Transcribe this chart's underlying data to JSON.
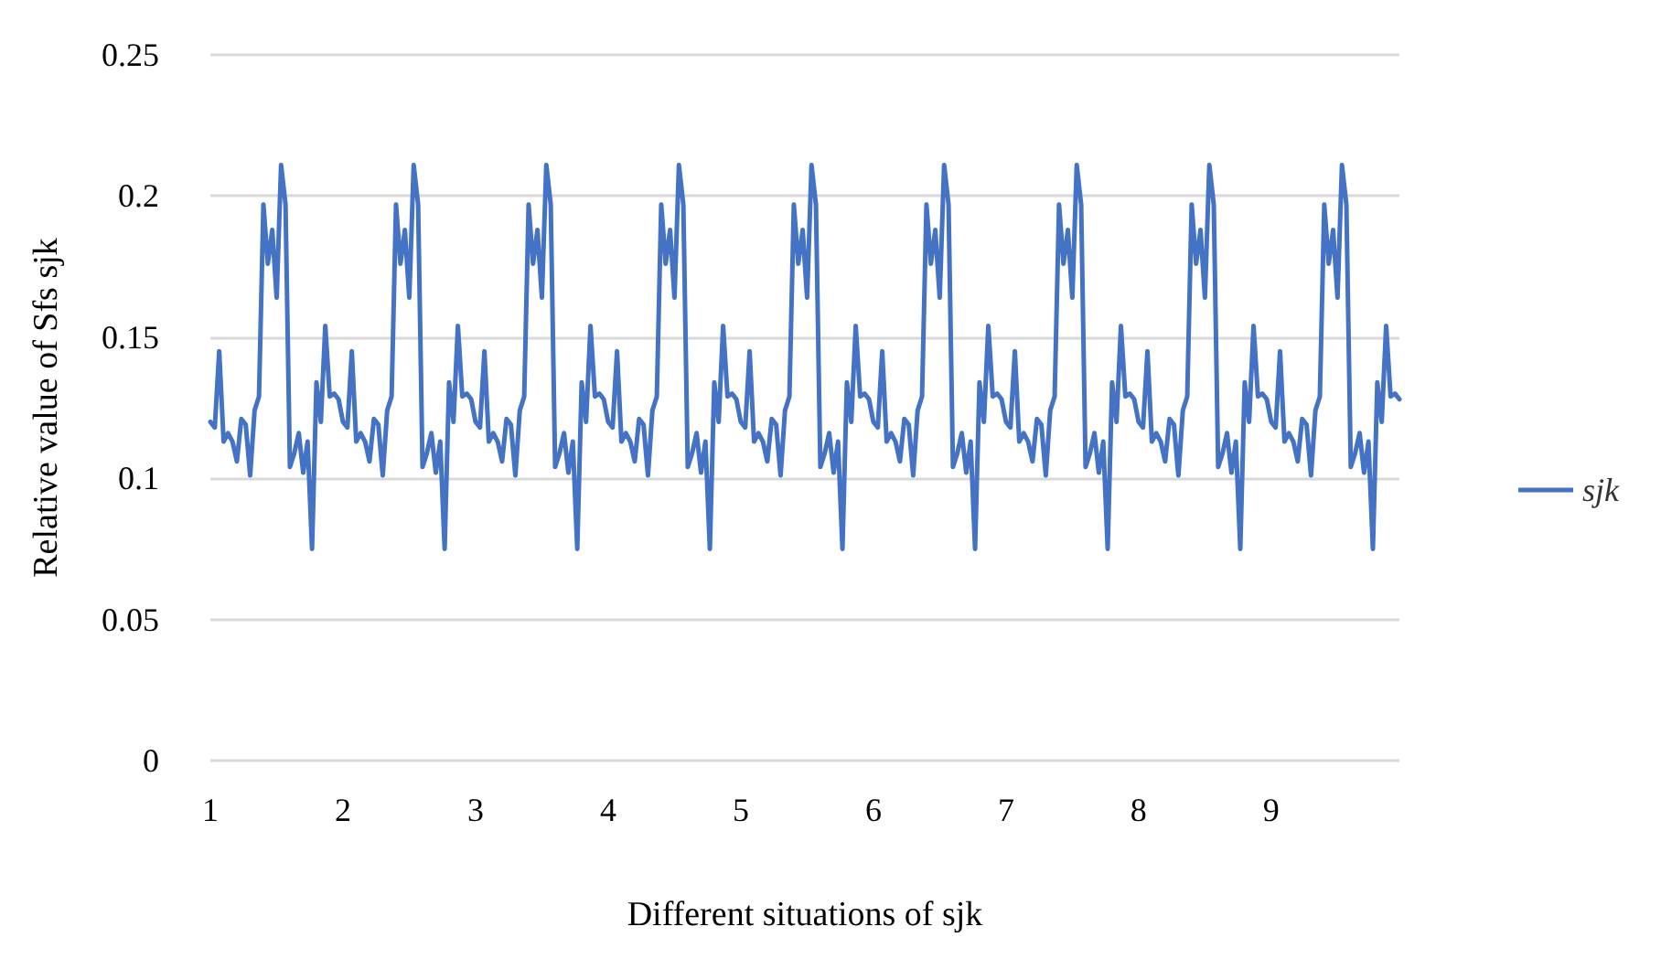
{
  "chart_data": {
    "type": "line",
    "xlabel": "Different situations of sjk",
    "ylabel": "Relative value of Sfs sjk",
    "categories": [
      "1",
      null,
      null,
      null,
      null,
      null,
      null,
      null,
      null,
      null,
      null,
      null,
      null,
      null,
      null,
      null,
      null,
      null,
      null,
      null,
      null,
      null,
      null,
      null,
      null,
      null,
      null,
      null,
      null,
      null,
      "2",
      null,
      null,
      null,
      null,
      null,
      null,
      null,
      null,
      null,
      null,
      null,
      null,
      null,
      null,
      null,
      null,
      null,
      null,
      null,
      null,
      null,
      null,
      null,
      null,
      null,
      null,
      null,
      null,
      null,
      "3",
      null,
      null,
      null,
      null,
      null,
      null,
      null,
      null,
      null,
      null,
      null,
      null,
      null,
      null,
      null,
      null,
      null,
      null,
      null,
      null,
      null,
      null,
      null,
      null,
      null,
      null,
      null,
      null,
      null,
      "4",
      null,
      null,
      null,
      null,
      null,
      null,
      null,
      null,
      null,
      null,
      null,
      null,
      null,
      null,
      null,
      null,
      null,
      null,
      null,
      null,
      null,
      null,
      null,
      null,
      null,
      null,
      null,
      null,
      null,
      "5",
      null,
      null,
      null,
      null,
      null,
      null,
      null,
      null,
      null,
      null,
      null,
      null,
      null,
      null,
      null,
      null,
      null,
      null,
      null,
      null,
      null,
      null,
      null,
      null,
      null,
      null,
      null,
      null,
      null,
      "6",
      null,
      null,
      null,
      null,
      null,
      null,
      null,
      null,
      null,
      null,
      null,
      null,
      null,
      null,
      null,
      null,
      null,
      null,
      null,
      null,
      null,
      null,
      null,
      null,
      null,
      null,
      null,
      null,
      null,
      "7",
      null,
      null,
      null,
      null,
      null,
      null,
      null,
      null,
      null,
      null,
      null,
      null,
      null,
      null,
      null,
      null,
      null,
      null,
      null,
      null,
      null,
      null,
      null,
      null,
      null,
      null,
      null,
      null,
      null,
      "8",
      null,
      null,
      null,
      null,
      null,
      null,
      null,
      null,
      null,
      null,
      null,
      null,
      null,
      null,
      null,
      null,
      null,
      null,
      null,
      null,
      null,
      null,
      null,
      null,
      null,
      null,
      null,
      null,
      null,
      "9",
      null,
      null,
      null,
      null,
      null,
      null,
      null,
      null,
      null,
      null,
      null,
      null,
      null,
      null,
      null,
      null,
      null,
      null,
      null,
      null,
      null,
      null,
      null,
      null,
      null,
      null,
      null,
      null,
      null
    ],
    "series": [
      {
        "name": "sjk",
        "color": "#4472c4",
        "values": [
          0.12,
          0.118,
          0.145,
          0.113,
          0.116,
          0.113,
          0.106,
          0.121,
          0.119,
          0.101,
          0.124,
          0.129,
          0.197,
          0.176,
          0.188,
          0.164,
          0.211,
          0.197,
          0.104,
          0.109,
          0.116,
          0.102,
          0.113,
          0.075,
          0.134,
          0.12,
          0.154,
          0.129,
          0.13,
          0.128,
          0.12,
          0.118,
          0.145,
          0.113,
          0.116,
          0.113,
          0.106,
          0.121,
          0.119,
          0.101,
          0.124,
          0.129,
          0.197,
          0.176,
          0.188,
          0.164,
          0.211,
          0.197,
          0.104,
          0.109,
          0.116,
          0.102,
          0.113,
          0.075,
          0.134,
          0.12,
          0.154,
          0.129,
          0.13,
          0.128,
          0.12,
          0.118,
          0.145,
          0.113,
          0.116,
          0.113,
          0.106,
          0.121,
          0.119,
          0.101,
          0.124,
          0.129,
          0.197,
          0.176,
          0.188,
          0.164,
          0.211,
          0.197,
          0.104,
          0.109,
          0.116,
          0.102,
          0.113,
          0.075,
          0.134,
          0.12,
          0.154,
          0.129,
          0.13,
          0.128,
          0.12,
          0.118,
          0.145,
          0.113,
          0.116,
          0.113,
          0.106,
          0.121,
          0.119,
          0.101,
          0.124,
          0.129,
          0.197,
          0.176,
          0.188,
          0.164,
          0.211,
          0.197,
          0.104,
          0.109,
          0.116,
          0.102,
          0.113,
          0.075,
          0.134,
          0.12,
          0.154,
          0.129,
          0.13,
          0.128,
          0.12,
          0.118,
          0.145,
          0.113,
          0.116,
          0.113,
          0.106,
          0.121,
          0.119,
          0.101,
          0.124,
          0.129,
          0.197,
          0.176,
          0.188,
          0.164,
          0.211,
          0.197,
          0.104,
          0.109,
          0.116,
          0.102,
          0.113,
          0.075,
          0.134,
          0.12,
          0.154,
          0.129,
          0.13,
          0.128,
          0.12,
          0.118,
          0.145,
          0.113,
          0.116,
          0.113,
          0.106,
          0.121,
          0.119,
          0.101,
          0.124,
          0.129,
          0.197,
          0.176,
          0.188,
          0.164,
          0.211,
          0.197,
          0.104,
          0.109,
          0.116,
          0.102,
          0.113,
          0.075,
          0.134,
          0.12,
          0.154,
          0.129,
          0.13,
          0.128,
          0.12,
          0.118,
          0.145,
          0.113,
          0.116,
          0.113,
          0.106,
          0.121,
          0.119,
          0.101,
          0.124,
          0.129,
          0.197,
          0.176,
          0.188,
          0.164,
          0.211,
          0.197,
          0.104,
          0.109,
          0.116,
          0.102,
          0.113,
          0.075,
          0.134,
          0.12,
          0.154,
          0.129,
          0.13,
          0.128,
          0.12,
          0.118,
          0.145,
          0.113,
          0.116,
          0.113,
          0.106,
          0.121,
          0.119,
          0.101,
          0.124,
          0.129,
          0.197,
          0.176,
          0.188,
          0.164,
          0.211,
          0.197,
          0.104,
          0.109,
          0.116,
          0.102,
          0.113,
          0.075,
          0.134,
          0.12,
          0.154,
          0.129,
          0.13,
          0.128,
          0.12,
          0.118,
          0.145,
          0.113,
          0.116,
          0.113,
          0.106,
          0.121,
          0.119,
          0.101,
          0.124,
          0.129,
          0.197,
          0.176,
          0.188,
          0.164,
          0.211,
          0.197,
          0.104,
          0.109,
          0.116,
          0.102,
          0.113,
          0.075,
          0.134,
          0.12,
          0.154,
          0.129,
          0.13,
          0.128
        ]
      }
    ],
    "ylim": [
      0,
      0.25
    ],
    "yticks": [
      0,
      0.05,
      0.1,
      0.15,
      0.2,
      0.25
    ],
    "grid": "y",
    "legend": "right",
    "marker": "none",
    "line_style": "solid"
  }
}
